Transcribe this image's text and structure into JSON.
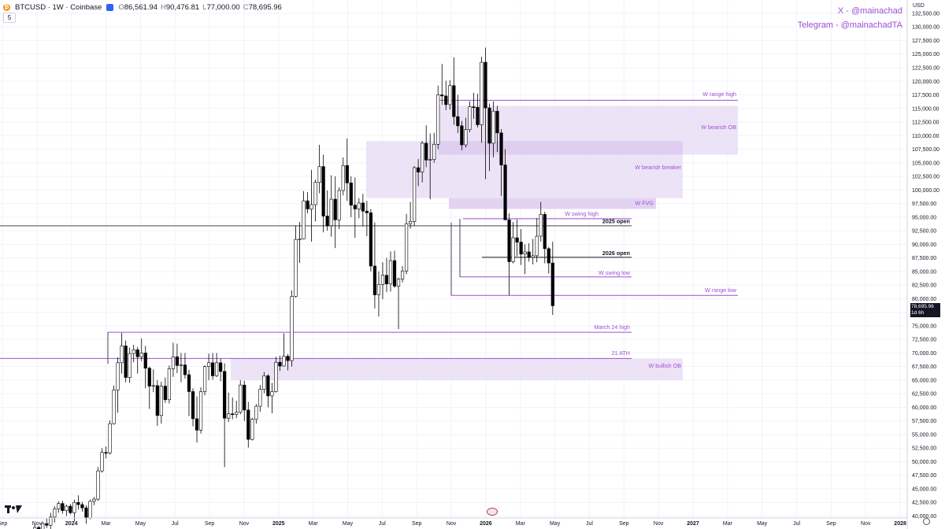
{
  "header": {
    "symbol": "BTCUSD · 1W · Coinbase",
    "open_label": "O",
    "open": "86,561.94",
    "high_label": "H",
    "high": "90,476.81",
    "low_label": "L",
    "low": "77,000.00",
    "close_label": "C",
    "close": "78,695.96",
    "coin_glyph": "₿"
  },
  "interval_counter": "5",
  "watermark": {
    "line1": "X - @mainachad",
    "line2": "Telegram - @mainachadTA"
  },
  "price_axis": {
    "currency": "USD",
    "tick_step": 2500,
    "min": 40000,
    "max": 132500,
    "current_price_label": "78,695.96",
    "countdown_label": "1d 6h"
  },
  "time_axis_labels": [
    {
      "label": "Sep",
      "bold": false
    },
    {
      "label": "Nov",
      "bold": false
    },
    {
      "label": "2024",
      "bold": true
    },
    {
      "label": "Mar",
      "bold": false
    },
    {
      "label": "May",
      "bold": false
    },
    {
      "label": "Jul",
      "bold": false
    },
    {
      "label": "Sep",
      "bold": false
    },
    {
      "label": "Nov",
      "bold": false
    },
    {
      "label": "2025",
      "bold": true
    },
    {
      "label": "Mar",
      "bold": false
    },
    {
      "label": "May",
      "bold": false
    },
    {
      "label": "Jul",
      "bold": false
    },
    {
      "label": "Sep",
      "bold": false
    },
    {
      "label": "Nov",
      "bold": false
    },
    {
      "label": "2026",
      "bold": true
    },
    {
      "label": "Mar",
      "bold": false
    },
    {
      "label": "May",
      "bold": false
    },
    {
      "label": "Jul",
      "bold": false
    },
    {
      "label": "Sep",
      "bold": false
    },
    {
      "label": "Nov",
      "bold": false
    },
    {
      "label": "2027",
      "bold": true
    },
    {
      "label": "Mar",
      "bold": false
    },
    {
      "label": "May",
      "bold": false
    },
    {
      "label": "Jul",
      "bold": false
    },
    {
      "label": "Sep",
      "bold": false
    },
    {
      "label": "Nov",
      "bold": false
    },
    {
      "label": "2028",
      "bold": true
    }
  ],
  "annotations": [
    {
      "label": "W range high",
      "color": "#9c4fd6",
      "bold": false
    },
    {
      "label": "W bearish OB",
      "color": "#9c4fd6",
      "bold": false
    },
    {
      "label": "W bearish breaker",
      "color": "#9c4fd6",
      "bold": false
    },
    {
      "label": "W FVG",
      "color": "#9c4fd6",
      "bold": false
    },
    {
      "label": "W swing high",
      "color": "#9c4fd6",
      "bold": false
    },
    {
      "label": "2025 open",
      "color": "#131722",
      "bold": true
    },
    {
      "label": "2026 open",
      "color": "#131722",
      "bold": true
    },
    {
      "label": "W swing low",
      "color": "#9c4fd6",
      "bold": false
    },
    {
      "label": "W range low",
      "color": "#9c4fd6",
      "bold": false
    },
    {
      "label": "March 24 high",
      "color": "#9c4fd6",
      "bold": false
    },
    {
      "label": "21 ATH",
      "color": "#9c4fd6",
      "bold": false
    },
    {
      "label": "W bullish OB",
      "color": "#9c4fd6",
      "bold": false
    }
  ],
  "colors": {
    "zone_fill": "#e8dcf5",
    "zone_fill_dark": "#dcc8ee",
    "accent": "#9c4fd6",
    "line_black": "#131722",
    "candle_up": "#ffffff",
    "candle_down": "#000000",
    "grid": "#f0f3fa"
  },
  "chart_data": {
    "type": "candlestick",
    "title": "BTCUSD · 1W · Coinbase",
    "xlabel": "",
    "ylabel": "",
    "ylim": [
      40000,
      132500
    ],
    "grid": true,
    "levels": [
      {
        "name": "W range high",
        "value": 116500
      },
      {
        "name": "2025 open",
        "value": 93400
      },
      {
        "name": "W swing high",
        "value": 94700
      },
      {
        "name": "2026 open",
        "value": 87600
      },
      {
        "name": "W swing low",
        "value": 84000
      },
      {
        "name": "W range low",
        "value": 80600
      },
      {
        "name": "March 24 high",
        "value": 73800
      },
      {
        "name": "21 ATH",
        "value": 69000
      }
    ],
    "zones": [
      {
        "name": "W bearish OB",
        "low": 106500,
        "high": 115500
      },
      {
        "name": "W bearish breaker",
        "low": 98500,
        "high": 109000
      },
      {
        "name": "W FVG",
        "low": 96500,
        "high": 98500
      },
      {
        "name": "W bullish OB",
        "low": 65000,
        "high": 69000
      }
    ],
    "candles": [
      {
        "o": 36500,
        "h": 38500,
        "l": 35800,
        "c": 37900
      },
      {
        "o": 37900,
        "h": 38200,
        "l": 36900,
        "c": 37200
      },
      {
        "o": 37200,
        "h": 39000,
        "l": 36700,
        "c": 38600
      },
      {
        "o": 38600,
        "h": 39500,
        "l": 37800,
        "c": 38300
      },
      {
        "o": 38300,
        "h": 40600,
        "l": 37600,
        "c": 39800
      },
      {
        "o": 39800,
        "h": 41800,
        "l": 38800,
        "c": 41300
      },
      {
        "o": 41300,
        "h": 42700,
        "l": 40600,
        "c": 42300
      },
      {
        "o": 42300,
        "h": 42800,
        "l": 40400,
        "c": 41000
      },
      {
        "o": 41000,
        "h": 42100,
        "l": 40000,
        "c": 41800
      },
      {
        "o": 41800,
        "h": 42200,
        "l": 40300,
        "c": 40600
      },
      {
        "o": 40600,
        "h": 43000,
        "l": 39000,
        "c": 42500
      },
      {
        "o": 42500,
        "h": 43800,
        "l": 41200,
        "c": 42100
      },
      {
        "o": 42100,
        "h": 42600,
        "l": 40800,
        "c": 41500
      },
      {
        "o": 41500,
        "h": 42000,
        "l": 38600,
        "c": 39600
      },
      {
        "o": 39600,
        "h": 43000,
        "l": 39400,
        "c": 42700
      },
      {
        "o": 42700,
        "h": 43500,
        "l": 42000,
        "c": 43100
      },
      {
        "o": 43100,
        "h": 49000,
        "l": 42800,
        "c": 48300
      },
      {
        "o": 48300,
        "h": 52500,
        "l": 48000,
        "c": 51700
      },
      {
        "o": 51700,
        "h": 52800,
        "l": 50600,
        "c": 51600
      },
      {
        "o": 51600,
        "h": 57600,
        "l": 51300,
        "c": 57000
      },
      {
        "o": 57000,
        "h": 64000,
        "l": 56800,
        "c": 63200
      },
      {
        "o": 63200,
        "h": 69200,
        "l": 59000,
        "c": 68200
      },
      {
        "o": 68200,
        "h": 73700,
        "l": 66200,
        "c": 71300
      },
      {
        "o": 71300,
        "h": 72300,
        "l": 64600,
        "c": 65500
      },
      {
        "o": 65500,
        "h": 71000,
        "l": 64500,
        "c": 69900
      },
      {
        "o": 69900,
        "h": 71500,
        "l": 68300,
        "c": 70600
      },
      {
        "o": 70600,
        "h": 71100,
        "l": 66200,
        "c": 69300
      },
      {
        "o": 69300,
        "h": 72700,
        "l": 68500,
        "c": 70000
      },
      {
        "o": 70000,
        "h": 71300,
        "l": 63500,
        "c": 67200
      },
      {
        "o": 67200,
        "h": 67500,
        "l": 59700,
        "c": 63900
      },
      {
        "o": 63900,
        "h": 67000,
        "l": 62800,
        "c": 64000
      },
      {
        "o": 64000,
        "h": 65000,
        "l": 56600,
        "c": 58500
      },
      {
        "o": 58500,
        "h": 64700,
        "l": 57000,
        "c": 63900
      },
      {
        "o": 63900,
        "h": 65500,
        "l": 60800,
        "c": 61400
      },
      {
        "o": 61400,
        "h": 67700,
        "l": 60700,
        "c": 67100
      },
      {
        "o": 67100,
        "h": 71900,
        "l": 65600,
        "c": 69300
      },
      {
        "o": 69300,
        "h": 71700,
        "l": 66300,
        "c": 67700
      },
      {
        "o": 67700,
        "h": 70000,
        "l": 64600,
        "c": 67800
      },
      {
        "o": 67800,
        "h": 70000,
        "l": 65300,
        "c": 66000
      },
      {
        "o": 66000,
        "h": 66900,
        "l": 58400,
        "c": 62900
      },
      {
        "o": 62900,
        "h": 63500,
        "l": 56500,
        "c": 57900
      },
      {
        "o": 57900,
        "h": 62000,
        "l": 53500,
        "c": 55800
      },
      {
        "o": 55800,
        "h": 63700,
        "l": 55200,
        "c": 62900
      },
      {
        "o": 62900,
        "h": 67700,
        "l": 62200,
        "c": 67500
      },
      {
        "o": 67500,
        "h": 69900,
        "l": 65000,
        "c": 68200
      },
      {
        "o": 68200,
        "h": 70000,
        "l": 65100,
        "c": 65800
      },
      {
        "o": 65800,
        "h": 70000,
        "l": 65600,
        "c": 68200
      },
      {
        "o": 68200,
        "h": 69000,
        "l": 64800,
        "c": 66600
      },
      {
        "o": 66600,
        "h": 68100,
        "l": 49000,
        "c": 58000
      },
      {
        "o": 58000,
        "h": 62700,
        "l": 57300,
        "c": 58800
      },
      {
        "o": 58800,
        "h": 61800,
        "l": 57800,
        "c": 58700
      },
      {
        "o": 58700,
        "h": 61200,
        "l": 58000,
        "c": 59100
      },
      {
        "o": 59100,
        "h": 65000,
        "l": 58700,
        "c": 64100
      },
      {
        "o": 64100,
        "h": 64900,
        "l": 57500,
        "c": 59500
      },
      {
        "o": 59500,
        "h": 61000,
        "l": 52600,
        "c": 54100
      },
      {
        "o": 54100,
        "h": 58100,
        "l": 53900,
        "c": 57800
      },
      {
        "o": 57800,
        "h": 60600,
        "l": 57000,
        "c": 60200
      },
      {
        "o": 60200,
        "h": 64100,
        "l": 59200,
        "c": 63300
      },
      {
        "o": 63300,
        "h": 66500,
        "l": 62600,
        "c": 65800
      },
      {
        "o": 65800,
        "h": 66100,
        "l": 60000,
        "c": 62100
      },
      {
        "o": 62100,
        "h": 64500,
        "l": 58900,
        "c": 62900
      },
      {
        "o": 62900,
        "h": 69300,
        "l": 62700,
        "c": 68300
      },
      {
        "o": 68300,
        "h": 69500,
        "l": 66700,
        "c": 67600
      },
      {
        "o": 67600,
        "h": 73600,
        "l": 67500,
        "c": 69400
      },
      {
        "o": 69400,
        "h": 69800,
        "l": 66800,
        "c": 68600
      },
      {
        "o": 68600,
        "h": 81500,
        "l": 67500,
        "c": 80400
      },
      {
        "o": 80400,
        "h": 93400,
        "l": 80200,
        "c": 90900
      },
      {
        "o": 90900,
        "h": 94100,
        "l": 86600,
        "c": 91000
      },
      {
        "o": 91000,
        "h": 99800,
        "l": 90900,
        "c": 98000
      },
      {
        "o": 98000,
        "h": 99600,
        "l": 95700,
        "c": 96500
      },
      {
        "o": 96500,
        "h": 103700,
        "l": 90500,
        "c": 97300
      },
      {
        "o": 97300,
        "h": 101900,
        "l": 94200,
        "c": 101400
      },
      {
        "o": 101400,
        "h": 108300,
        "l": 99400,
        "c": 104300
      },
      {
        "o": 104300,
        "h": 106500,
        "l": 92200,
        "c": 95200
      },
      {
        "o": 95200,
        "h": 99900,
        "l": 92500,
        "c": 93400
      },
      {
        "o": 93400,
        "h": 102700,
        "l": 91400,
        "c": 98300
      },
      {
        "o": 98300,
        "h": 102500,
        "l": 89300,
        "c": 94500
      },
      {
        "o": 94500,
        "h": 100500,
        "l": 92800,
        "c": 99900
      },
      {
        "o": 99900,
        "h": 106000,
        "l": 99000,
        "c": 104500
      },
      {
        "o": 104500,
        "h": 109500,
        "l": 98000,
        "c": 101300
      },
      {
        "o": 101300,
        "h": 102500,
        "l": 95000,
        "c": 97200
      },
      {
        "o": 97200,
        "h": 102300,
        "l": 91200,
        "c": 96500
      },
      {
        "o": 96500,
        "h": 98500,
        "l": 94800,
        "c": 97600
      },
      {
        "o": 97600,
        "h": 99300,
        "l": 93300,
        "c": 96100
      },
      {
        "o": 96100,
        "h": 98000,
        "l": 91500,
        "c": 95800
      },
      {
        "o": 95800,
        "h": 96500,
        "l": 85000,
        "c": 86000
      },
      {
        "o": 86000,
        "h": 94000,
        "l": 78200,
        "c": 80700
      },
      {
        "o": 80700,
        "h": 85000,
        "l": 76700,
        "c": 82600
      },
      {
        "o": 82600,
        "h": 86700,
        "l": 79900,
        "c": 84300
      },
      {
        "o": 84300,
        "h": 87500,
        "l": 81200,
        "c": 82700
      },
      {
        "o": 82700,
        "h": 88700,
        "l": 81300,
        "c": 87000
      },
      {
        "o": 87000,
        "h": 88800,
        "l": 82000,
        "c": 82300
      },
      {
        "o": 82300,
        "h": 83900,
        "l": 74400,
        "c": 83600
      },
      {
        "o": 83600,
        "h": 86000,
        "l": 83000,
        "c": 85100
      },
      {
        "o": 85100,
        "h": 95600,
        "l": 84500,
        "c": 93800
      },
      {
        "o": 93800,
        "h": 97800,
        "l": 92900,
        "c": 94200
      },
      {
        "o": 94200,
        "h": 104400,
        "l": 93400,
        "c": 104100
      },
      {
        "o": 104100,
        "h": 105700,
        "l": 100700,
        "c": 103300
      },
      {
        "o": 103300,
        "h": 109000,
        "l": 101400,
        "c": 108600
      },
      {
        "o": 108600,
        "h": 111900,
        "l": 104200,
        "c": 105500
      },
      {
        "o": 105500,
        "h": 110400,
        "l": 98300,
        "c": 105600
      },
      {
        "o": 105600,
        "h": 110500,
        "l": 105000,
        "c": 108400
      },
      {
        "o": 108400,
        "h": 119200,
        "l": 107500,
        "c": 117500
      },
      {
        "o": 117500,
        "h": 123200,
        "l": 115600,
        "c": 117300
      },
      {
        "o": 117300,
        "h": 120100,
        "l": 114700,
        "c": 115700
      },
      {
        "o": 115700,
        "h": 120200,
        "l": 114800,
        "c": 119200
      },
      {
        "o": 119200,
        "h": 124400,
        "l": 112000,
        "c": 113500
      },
      {
        "o": 113500,
        "h": 117500,
        "l": 110500,
        "c": 111800
      },
      {
        "o": 111800,
        "h": 112700,
        "l": 107300,
        "c": 108300
      },
      {
        "o": 108300,
        "h": 113300,
        "l": 107800,
        "c": 111100
      },
      {
        "o": 111100,
        "h": 116300,
        "l": 110600,
        "c": 115300
      },
      {
        "o": 115300,
        "h": 117900,
        "l": 113100,
        "c": 115200
      },
      {
        "o": 115200,
        "h": 117700,
        "l": 111500,
        "c": 112000
      },
      {
        "o": 112000,
        "h": 124500,
        "l": 108700,
        "c": 123500
      },
      {
        "o": 123500,
        "h": 126200,
        "l": 102000,
        "c": 115100
      },
      {
        "o": 115100,
        "h": 115900,
        "l": 103500,
        "c": 108600
      },
      {
        "o": 108600,
        "h": 116300,
        "l": 106000,
        "c": 114500
      },
      {
        "o": 114500,
        "h": 115500,
        "l": 107000,
        "c": 110500
      },
      {
        "o": 110500,
        "h": 111200,
        "l": 98900,
        "c": 104600
      },
      {
        "o": 104600,
        "h": 107500,
        "l": 94600,
        "c": 94500
      },
      {
        "o": 94500,
        "h": 95700,
        "l": 80600,
        "c": 86800
      },
      {
        "o": 86800,
        "h": 94100,
        "l": 86500,
        "c": 91200
      },
      {
        "o": 91200,
        "h": 94600,
        "l": 87800,
        "c": 90400
      },
      {
        "o": 90400,
        "h": 92800,
        "l": 86200,
        "c": 88200
      },
      {
        "o": 88200,
        "h": 90000,
        "l": 84500,
        "c": 88600
      },
      {
        "o": 88600,
        "h": 90200,
        "l": 86800,
        "c": 87600
      },
      {
        "o": 87600,
        "h": 91000,
        "l": 86300,
        "c": 87900
      },
      {
        "o": 87900,
        "h": 94800,
        "l": 86700,
        "c": 91500
      },
      {
        "o": 91500,
        "h": 97800,
        "l": 90500,
        "c": 95500
      },
      {
        "o": 95500,
        "h": 96000,
        "l": 86500,
        "c": 89200
      },
      {
        "o": 89200,
        "h": 89500,
        "l": 84600,
        "c": 86561
      },
      {
        "o": 86561,
        "h": 90477,
        "l": 77000,
        "c": 78696
      }
    ]
  }
}
